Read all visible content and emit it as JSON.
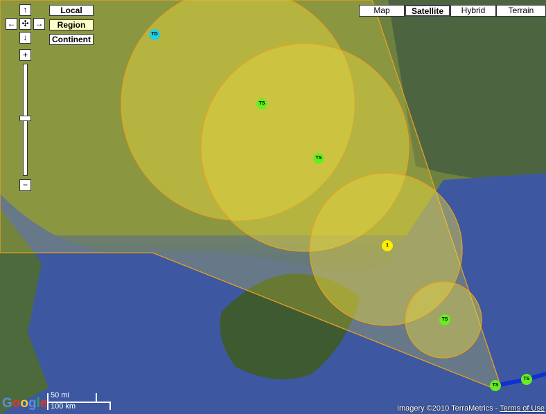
{
  "map_types": [
    {
      "label": "Map",
      "selected": false
    },
    {
      "label": "Satellite",
      "selected": true
    },
    {
      "label": "Hybrid",
      "selected": false
    },
    {
      "label": "Terrain",
      "selected": false
    }
  ],
  "zoom_presets": [
    {
      "label": "Local",
      "selected": false
    },
    {
      "label": "Region",
      "selected": true
    },
    {
      "label": "Continent",
      "selected": false
    }
  ],
  "nav": {
    "up": "↑",
    "down": "↓",
    "left": "←",
    "right": "→",
    "center": "✣",
    "zoom_in": "+",
    "zoom_out": "−"
  },
  "zoom_level_fraction": 0.5,
  "storm_track": [
    {
      "label": "TD",
      "category": "Tropical Depression",
      "color": "#22d0e0"
    },
    {
      "label": "TS",
      "category": "Tropical Storm",
      "color": "#66ee22"
    },
    {
      "label": "TS",
      "category": "Tropical Storm",
      "color": "#66ee22"
    },
    {
      "label": "1",
      "category": "Typhoon Category 1",
      "color": "#ffee00"
    },
    {
      "label": "TS",
      "category": "Tropical Storm",
      "color": "#66ee22"
    },
    {
      "label": "TS",
      "category": "Tropical Storm",
      "color": "#66ee22"
    },
    {
      "label": "TS",
      "category": "Tropical Storm",
      "color": "#66ee22"
    }
  ],
  "cone_color": "#e8d840",
  "scale": {
    "miles": "50 mi",
    "km": "100 km"
  },
  "logo": "Google",
  "attribution": {
    "imagery": "Imagery ©2010 TerraMetrics - ",
    "terms": "Terms of Use"
  }
}
